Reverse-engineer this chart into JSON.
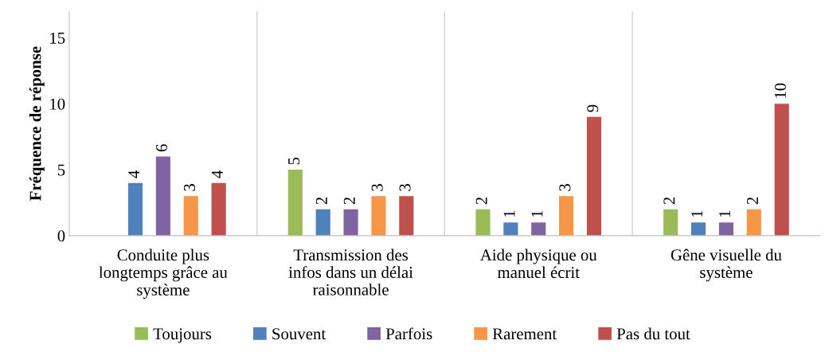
{
  "chart_data": {
    "type": "bar",
    "ylabel": "Fréquence de réponse",
    "categories": [
      "Conduite plus\nlongtemps grâce au\nsystème",
      "Transmission des\ninfos dans un délai\nraisonnable",
      "Aide physique ou\nmanuel écrit",
      "Gêne visuelle du\nsystème"
    ],
    "series": [
      {
        "name": "Toujours",
        "color": "#9bbb59",
        "values": [
          null,
          5,
          2,
          2
        ]
      },
      {
        "name": "Souvent",
        "color": "#4f81bd",
        "values": [
          4,
          2,
          1,
          1
        ]
      },
      {
        "name": "Parfois",
        "color": "#8064a2",
        "values": [
          6,
          2,
          1,
          1
        ]
      },
      {
        "name": "Rarement",
        "color": "#f79646",
        "values": [
          3,
          3,
          3,
          2
        ]
      },
      {
        "name": "Pas du tout",
        "color": "#c0504d",
        "values": [
          4,
          3,
          9,
          10
        ]
      }
    ],
    "ylim": [
      0,
      17
    ],
    "yticks": [
      0,
      5,
      10,
      15
    ],
    "grid": "x",
    "legend": "bottom",
    "data_labels": true
  }
}
